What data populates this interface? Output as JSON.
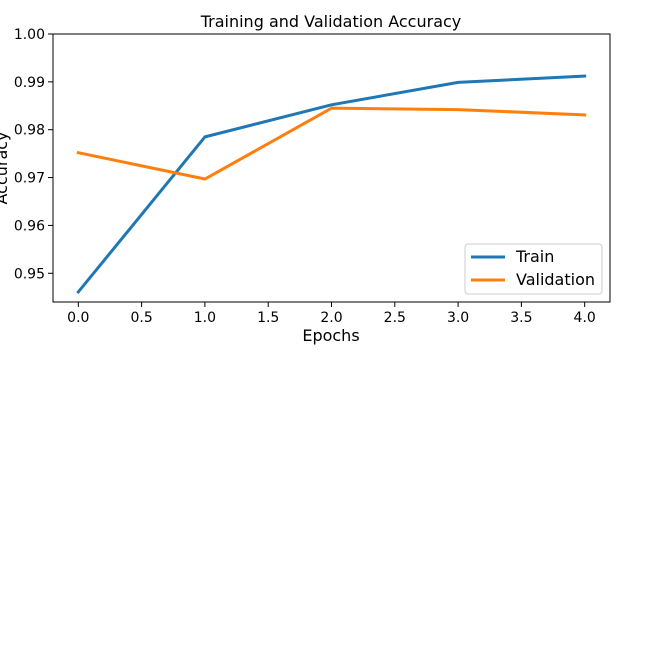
{
  "chart_data": {
    "type": "line",
    "title": "Training and Validation Accuracy",
    "xlabel": "Epochs",
    "ylabel": "Accuracy",
    "xlim": [
      -0.2,
      4.2
    ],
    "ylim": [
      0.944,
      1.0
    ],
    "xticks": [
      0.0,
      0.5,
      1.0,
      1.5,
      2.0,
      2.5,
      3.0,
      3.5,
      4.0
    ],
    "xtick_labels": [
      "0.0",
      "0.5",
      "1.0",
      "1.5",
      "2.0",
      "2.5",
      "3.0",
      "3.5",
      "4.0"
    ],
    "yticks": [
      0.95,
      0.96,
      0.97,
      0.98,
      0.99,
      1.0
    ],
    "ytick_labels": [
      "0.95",
      "0.96",
      "0.97",
      "0.98",
      "0.99",
      "1.00"
    ],
    "grid": false,
    "legend_position": "lower-right",
    "x": [
      0,
      1,
      2,
      3,
      4
    ],
    "series": [
      {
        "name": "Train",
        "color": "#1f77b4",
        "values": [
          0.9461,
          0.9785,
          0.9852,
          0.9899,
          0.9912
        ]
      },
      {
        "name": "Validation",
        "color": "#ff7f0e",
        "values": [
          0.9752,
          0.9697,
          0.9845,
          0.9842,
          0.9831
        ]
      }
    ]
  }
}
